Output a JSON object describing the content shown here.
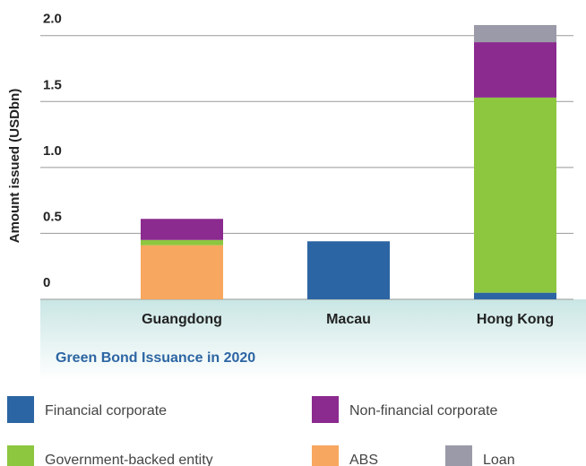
{
  "chart_data": {
    "type": "stacked_bar",
    "subtitle": "Green Bond Issuance in 2020",
    "y_label": "Amount issued (USDbn)",
    "categories": [
      "Guangdong",
      "Macau",
      "Hong Kong"
    ],
    "series": [
      {
        "name": "Financial corporate",
        "color": "#2c65a3",
        "values": [
          0,
          0.44,
          0.05
        ]
      },
      {
        "name": "ABS",
        "color": "#f7a75f",
        "values": [
          0.41,
          0,
          0
        ]
      },
      {
        "name": "Government-backed entity",
        "color": "#8dc63f",
        "values": [
          0.04,
          0,
          1.48
        ]
      },
      {
        "name": "Non-financial corporate",
        "color": "#8b2a8f",
        "values": [
          0.16,
          0,
          0.42
        ]
      },
      {
        "name": "Loan",
        "color": "#9a9aa8",
        "values": [
          0,
          0,
          0.13
        ]
      }
    ],
    "ylim": [
      0,
      2.1
    ],
    "yticks": [
      0,
      0.5,
      {
        "value": 1,
        "label": "1.0"
      },
      1.5,
      {
        "value": 2,
        "label": "2.0"
      }
    ],
    "grid": true
  }
}
